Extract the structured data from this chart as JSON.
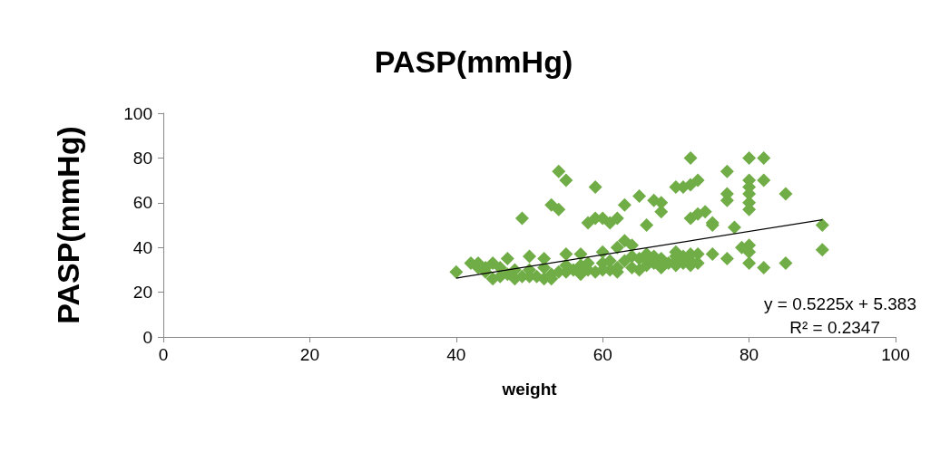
{
  "chart_data": {
    "type": "scatter",
    "title": "PASP(mmHg)",
    "xlabel": "weight",
    "ylabel": "PASP(mmHg)",
    "marker": "diamond",
    "grid": false,
    "xlim": [
      0,
      100
    ],
    "xticks": [
      0,
      20,
      40,
      60,
      80,
      100
    ],
    "ylim": [
      0,
      100
    ],
    "yticks": [
      0,
      20,
      40,
      60,
      80,
      100
    ],
    "series": [
      {
        "color": "#70ad47",
        "x": [
          72,
          80,
          82,
          77,
          80,
          82,
          73,
          72,
          70,
          71,
          74,
          73,
          72,
          75,
          75,
          80,
          80,
          80,
          80,
          77,
          77,
          78,
          79,
          80,
          80,
          80,
          82,
          85,
          85,
          90,
          90,
          77,
          75,
          73,
          72,
          70,
          70,
          68,
          68,
          67,
          66,
          65,
          63,
          62,
          61,
          60,
          59,
          58,
          59,
          54,
          55,
          53,
          54,
          49,
          63,
          64,
          62,
          60,
          57,
          55,
          52,
          50,
          47,
          45,
          43,
          42,
          40,
          43,
          44,
          46,
          48,
          50,
          52,
          55,
          57,
          58,
          60,
          61,
          63,
          65,
          66,
          67,
          68,
          70,
          71,
          72,
          73,
          44,
          46,
          47,
          49,
          50,
          52,
          53,
          55,
          56,
          57,
          58,
          60,
          61,
          62,
          64,
          66,
          67,
          69,
          45,
          48,
          51,
          53,
          54,
          59,
          62,
          65,
          68,
          70,
          72,
          71,
          66,
          64
        ],
        "values": [
          80,
          80,
          80,
          74,
          70,
          70,
          70,
          68,
          67,
          67,
          56,
          55,
          53,
          51,
          50,
          67,
          64,
          60,
          57,
          64,
          61,
          49,
          40,
          41,
          38,
          33,
          31,
          33,
          64,
          50,
          39,
          35,
          37,
          33,
          34,
          38,
          34,
          56,
          60,
          61,
          50,
          63,
          59,
          53,
          51,
          53,
          53,
          51,
          67,
          74,
          70,
          59,
          57,
          53,
          43,
          41,
          40,
          38,
          37,
          37,
          35,
          36,
          35,
          33,
          33,
          33,
          29,
          31,
          31,
          31,
          30,
          30,
          31,
          32,
          32,
          33,
          33,
          34,
          34,
          35,
          34,
          36,
          35,
          36,
          36,
          37,
          37,
          29,
          27,
          28,
          27,
          27,
          26,
          28,
          29,
          30,
          28,
          30,
          30,
          30,
          31,
          31,
          32,
          33,
          33,
          26,
          26,
          27,
          26,
          29,
          29,
          29,
          30,
          31,
          32,
          32,
          33,
          37,
          36
        ]
      },
      {
        "type": "line",
        "color": "#000000",
        "marker": "none",
        "x": [
          40,
          90
        ],
        "values": [
          26.3,
          52.4
        ]
      }
    ],
    "annotations": [
      "y = 0.5225x + 5.383",
      "R² = 0.2347"
    ]
  }
}
